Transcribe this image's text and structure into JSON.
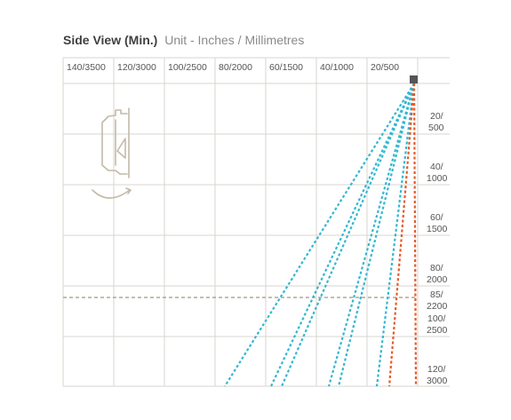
{
  "title": {
    "main": "Side View (Min.)",
    "sub": "Unit - Inches / Millimetres"
  },
  "x_axis_labels": [
    "140/3500",
    "120/3000",
    "100/2500",
    "80/2000",
    "60/1500",
    "40/1000",
    "20/500"
  ],
  "y_axis_labels": [
    [
      "20/",
      "500"
    ],
    [
      "40/",
      "1000"
    ],
    [
      "60/",
      "1500"
    ],
    [
      "80/",
      "2000"
    ],
    [
      "85/",
      "2200"
    ],
    [
      "100/",
      "2500"
    ],
    [
      "120/",
      "3000"
    ]
  ],
  "colors": {
    "grid": "#d8d5cf",
    "blue_beams": "#33b7d0",
    "orange_beams": "#e45a2a",
    "dashed_reference": "#a29382",
    "sensor": "#555555",
    "illustration": "#c4b9a8"
  }
}
